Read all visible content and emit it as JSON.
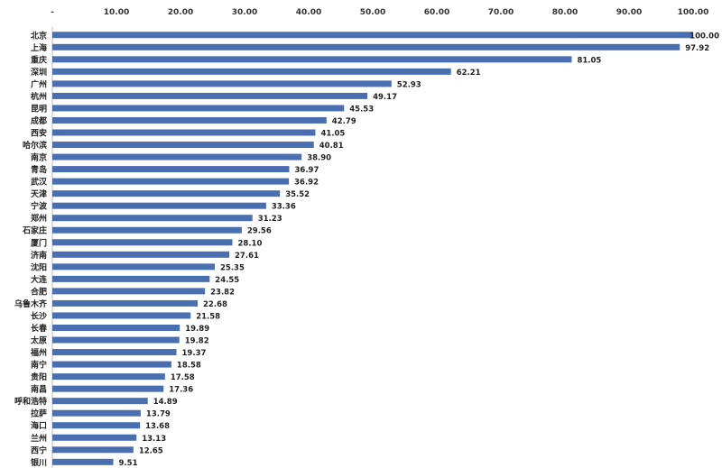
{
  "chart_data": {
    "type": "bar",
    "orientation": "horizontal",
    "title": "",
    "xlabel": "",
    "ylabel": "",
    "xlim": [
      0,
      100
    ],
    "x_axis_position": "top",
    "tick_values": [
      0,
      10,
      20,
      30,
      40,
      50,
      60,
      70,
      80,
      90,
      100
    ],
    "tick_labels": [
      "-",
      "10.00",
      "20.00",
      "30.00",
      "40.00",
      "50.00",
      "60.00",
      "70.00",
      "80.00",
      "90.00",
      "100.00"
    ],
    "grid": false,
    "bar_color": "#4a6fb0",
    "categories": [
      "北京",
      "上海",
      "重庆",
      "深圳",
      "广州",
      "杭州",
      "昆明",
      "成都",
      "西安",
      "哈尔滨",
      "南京",
      "青岛",
      "武汉",
      "天津",
      "宁波",
      "郑州",
      "石家庄",
      "厦门",
      "济南",
      "沈阳",
      "大连",
      "合肥",
      "乌鲁木齐",
      "长沙",
      "长春",
      "太原",
      "福州",
      "南宁",
      "贵阳",
      "南昌",
      "呼和浩特",
      "拉萨",
      "海口",
      "兰州",
      "西宁",
      "银川"
    ],
    "values": [
      100.0,
      97.92,
      81.05,
      62.21,
      52.93,
      49.17,
      45.53,
      42.79,
      41.05,
      40.81,
      38.9,
      36.97,
      36.92,
      35.52,
      33.36,
      31.23,
      29.56,
      28.1,
      27.61,
      25.35,
      24.55,
      23.82,
      22.68,
      21.58,
      19.89,
      19.82,
      19.37,
      18.58,
      17.58,
      17.36,
      14.89,
      13.79,
      13.68,
      13.13,
      12.65,
      9.51
    ],
    "value_labels": [
      "100.00",
      "97.92",
      "81.05",
      "62.21",
      "52.93",
      "49.17",
      "45.53",
      "42.79",
      "41.05",
      "40.81",
      "38.90",
      "36.97",
      "36.92",
      "35.52",
      "33.36",
      "31.23",
      "29.56",
      "28.10",
      "27.61",
      "25.35",
      "24.55",
      "23.82",
      "22.68",
      "21.58",
      "19.89",
      "19.82",
      "19.37",
      "18.58",
      "17.58",
      "17.36",
      "14.89",
      "13.79",
      "13.68",
      "13.13",
      "12.65",
      "9.51"
    ]
  }
}
